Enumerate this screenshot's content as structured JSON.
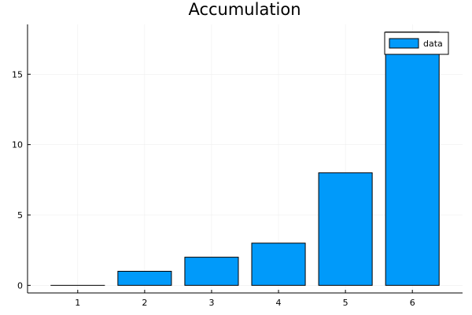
{
  "chart_data": {
    "type": "bar",
    "title": "Accumulation",
    "xlabel": "",
    "ylabel": "",
    "categories": [
      "1",
      "2",
      "3",
      "4",
      "5",
      "6"
    ],
    "x": [
      1,
      2,
      3,
      4,
      5,
      6
    ],
    "series": [
      {
        "name": "data",
        "values": [
          0,
          1,
          2,
          3,
          8,
          18
        ]
      }
    ],
    "xlim": [
      0.25,
      6.75
    ],
    "ylim": [
      -0.54,
      18.54
    ],
    "yticks": [
      0,
      5,
      10,
      15
    ],
    "grid": true,
    "legend": "top-right",
    "colors": {
      "bar_fill": "#009AFA",
      "bar_stroke": "#000000",
      "grid": "#EBEBEB",
      "axis": "#000000"
    }
  }
}
